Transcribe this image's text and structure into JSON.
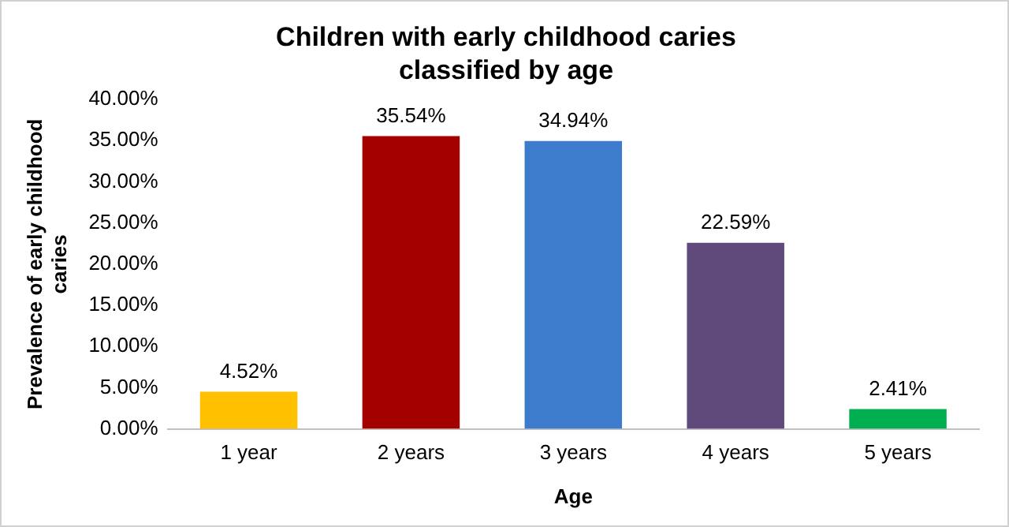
{
  "chart_data": {
    "type": "bar",
    "title": "Children with early childhood caries classified by age",
    "xlabel": "Age",
    "ylabel": "Prevalence of early childhood caries",
    "categories": [
      "1 year",
      "2 years",
      "3 years",
      "4 years",
      "5 years"
    ],
    "values": [
      4.52,
      35.54,
      34.94,
      22.59,
      2.41
    ],
    "colors": [
      "#ffc000",
      "#a50000",
      "#3d7ccc",
      "#604a7b",
      "#00b050"
    ],
    "value_labels": [
      "4.52%",
      "35.54%",
      "34.94%",
      "22.59%",
      "2.41%"
    ],
    "ylim": [
      0,
      40
    ],
    "yticks": [
      {
        "value": 0,
        "label": "0.00%"
      },
      {
        "value": 5,
        "label": "5.00%"
      },
      {
        "value": 10,
        "label": "10.00%"
      },
      {
        "value": 15,
        "label": "15.00%"
      },
      {
        "value": 20,
        "label": "20.00%"
      },
      {
        "value": 25,
        "label": "25.00%"
      },
      {
        "value": 30,
        "label": "30.00%"
      },
      {
        "value": 35,
        "label": "35.00%"
      },
      {
        "value": 40,
        "label": "40.00%"
      }
    ],
    "grid": false,
    "legend": false
  }
}
